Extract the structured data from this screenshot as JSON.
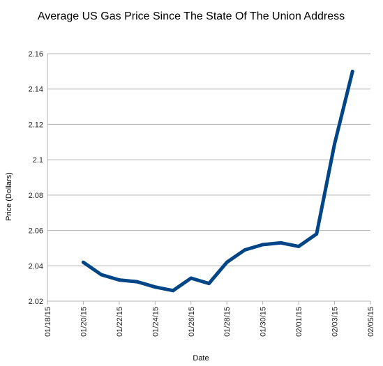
{
  "chart_data": {
    "type": "line",
    "title": "Average US Gas Price Since The State Of The Union Address",
    "xlabel": "Date",
    "ylabel": "Price (Dollars)",
    "x_tick_labels": [
      "01/18/15",
      "01/20/15",
      "01/22/15",
      "01/24/15",
      "01/26/15",
      "01/28/15",
      "01/30/15",
      "02/01/15",
      "02/03/15",
      "02/05/15"
    ],
    "y_tick_labels": [
      "2.16",
      "2.14",
      "2.12",
      "2.1",
      "2.08",
      "2.06",
      "2.04",
      "2.02"
    ],
    "xlim": [
      "2015-01-18",
      "2015-02-05"
    ],
    "ylim": [
      2.02,
      2.16
    ],
    "grid": "horizontal",
    "legend": "none",
    "series": [
      {
        "color": "#004586",
        "points": [
          {
            "x": "2015-01-20",
            "y": 2.042
          },
          {
            "x": "2015-01-21",
            "y": 2.035
          },
          {
            "x": "2015-01-22",
            "y": 2.032
          },
          {
            "x": "2015-01-23",
            "y": 2.031
          },
          {
            "x": "2015-01-24",
            "y": 2.028
          },
          {
            "x": "2015-01-25",
            "y": 2.026
          },
          {
            "x": "2015-01-26",
            "y": 2.033
          },
          {
            "x": "2015-01-27",
            "y": 2.03
          },
          {
            "x": "2015-01-28",
            "y": 2.042
          },
          {
            "x": "2015-01-29",
            "y": 2.049
          },
          {
            "x": "2015-01-30",
            "y": 2.052
          },
          {
            "x": "2015-01-31",
            "y": 2.053
          },
          {
            "x": "2015-02-01",
            "y": 2.051
          },
          {
            "x": "2015-02-02",
            "y": 2.058
          },
          {
            "x": "2015-02-03",
            "y": 2.109
          },
          {
            "x": "2015-02-04",
            "y": 2.15
          }
        ]
      }
    ]
  }
}
